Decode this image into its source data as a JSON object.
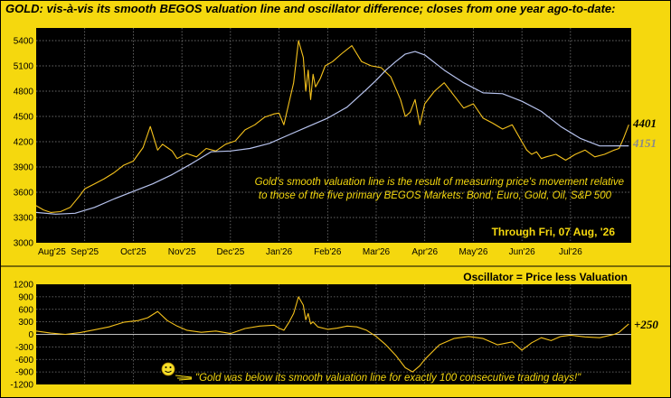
{
  "chart_data": [
    {
      "type": "line",
      "title": "GOLD:  vis-à-vis its smooth BEGOS valuation line and oscillator difference; closes from one year ago-to-date:",
      "x_ticks": [
        "Aug'25",
        "Sep'25",
        "Oct'25",
        "Nov'25",
        "Dec'25",
        "Jan'26",
        "Feb'26",
        "Mar'26",
        "Apr'26",
        "May'26",
        "Jun'26",
        "Jul'26"
      ],
      "y_ticks": [
        3000,
        3300,
        3600,
        3900,
        4200,
        4500,
        4800,
        5100,
        5400
      ],
      "ylim": [
        3000,
        5550
      ],
      "x_months_span": [
        0,
        12.25
      ],
      "grid": true,
      "series": [
        {
          "color": "#f5c21c",
          "x": [
            0,
            0.15,
            0.3,
            0.5,
            0.7,
            0.9,
            1.0,
            1.2,
            1.4,
            1.6,
            1.8,
            2.0,
            2.2,
            2.35,
            2.5,
            2.6,
            2.7,
            2.8,
            2.9,
            3.1,
            3.3,
            3.5,
            3.7,
            3.9,
            4.1,
            4.3,
            4.5,
            4.7,
            4.9,
            5.0,
            5.1,
            5.2,
            5.3,
            5.4,
            5.5,
            5.55,
            5.6,
            5.65,
            5.7,
            5.75,
            5.85,
            5.95,
            6.1,
            6.3,
            6.5,
            6.7,
            6.9,
            7.1,
            7.3,
            7.5,
            7.6,
            7.7,
            7.8,
            7.9,
            8.0,
            8.2,
            8.4,
            8.6,
            8.8,
            9.0,
            9.2,
            9.4,
            9.6,
            9.8,
            10.0,
            10.1,
            10.2,
            10.3,
            10.4,
            10.5,
            10.7,
            10.9,
            11.1,
            11.3,
            11.5,
            11.7,
            11.9,
            12.0,
            12.1,
            12.2
          ],
          "values": [
            3440,
            3390,
            3360,
            3370,
            3420,
            3560,
            3640,
            3700,
            3760,
            3830,
            3920,
            3970,
            4130,
            4380,
            4100,
            4170,
            4130,
            4090,
            4000,
            4060,
            4020,
            4120,
            4090,
            4170,
            4210,
            4340,
            4400,
            4490,
            4530,
            4540,
            4400,
            4650,
            4900,
            5400,
            5200,
            4800,
            5050,
            4700,
            5000,
            4850,
            4950,
            5100,
            5150,
            5250,
            5340,
            5150,
            5100,
            5080,
            4970,
            4700,
            4500,
            4550,
            4700,
            4400,
            4650,
            4800,
            4900,
            4750,
            4600,
            4650,
            4480,
            4420,
            4350,
            4400,
            4200,
            4100,
            4050,
            4080,
            4000,
            4020,
            4050,
            3980,
            4050,
            4100,
            4020,
            4050,
            4100,
            4120,
            4250,
            4401
          ]
        },
        {
          "color": "#b7c3ee",
          "x": [
            0,
            0.4,
            0.8,
            1.2,
            1.6,
            2.0,
            2.4,
            2.8,
            3.2,
            3.6,
            4.0,
            4.4,
            4.8,
            5.2,
            5.6,
            6.0,
            6.4,
            6.8,
            7.0,
            7.2,
            7.4,
            7.6,
            7.8,
            8.0,
            8.4,
            8.8,
            9.2,
            9.6,
            10.0,
            10.4,
            10.8,
            11.2,
            11.6,
            12.0,
            12.2
          ],
          "values": [
            3360,
            3340,
            3350,
            3420,
            3520,
            3610,
            3700,
            3810,
            3940,
            4080,
            4090,
            4120,
            4180,
            4280,
            4380,
            4480,
            4610,
            4820,
            4930,
            5050,
            5150,
            5240,
            5270,
            5230,
            5050,
            4900,
            4780,
            4770,
            4680,
            4560,
            4380,
            4240,
            4150,
            4151,
            4151
          ]
        }
      ],
      "end_labels": [
        {
          "text": "4401",
          "color": "#000000"
        },
        {
          "text": "4151",
          "color": "#8a8a8a"
        }
      ],
      "annotation_lines": [
        "Gold's smooth valuation line is the result of measuring price's movement relative",
        "to those of the five primary BEGOS Markets:  Bond, Euro, Gold, Oil, S&P 500"
      ],
      "date_label": "Through Fri, 07 Aug, '26"
    },
    {
      "type": "line",
      "title": "Oscillator = Price less Valuation",
      "y_ticks": [
        1200,
        900,
        600,
        300,
        0,
        -300,
        -600,
        -900,
        -1200
      ],
      "ylim": [
        -1200,
        1200
      ],
      "grid": true,
      "zero_line": true,
      "series": [
        {
          "color": "#f5c21c",
          "x": [
            0,
            0.3,
            0.6,
            0.9,
            1.2,
            1.5,
            1.8,
            2.1,
            2.3,
            2.5,
            2.7,
            2.9,
            3.1,
            3.4,
            3.7,
            4.0,
            4.3,
            4.6,
            4.9,
            5.0,
            5.1,
            5.2,
            5.3,
            5.4,
            5.5,
            5.55,
            5.6,
            5.65,
            5.7,
            5.8,
            6.0,
            6.2,
            6.4,
            6.6,
            6.8,
            7.0,
            7.2,
            7.4,
            7.6,
            7.75,
            7.9,
            8.0,
            8.3,
            8.6,
            8.9,
            9.2,
            9.5,
            9.8,
            10.0,
            10.2,
            10.4,
            10.6,
            10.8,
            11.0,
            11.3,
            11.6,
            11.9,
            12.0,
            12.1,
            12.2
          ],
          "values": [
            80,
            30,
            0,
            40,
            110,
            180,
            290,
            330,
            400,
            550,
            330,
            200,
            100,
            50,
            80,
            20,
            140,
            200,
            220,
            150,
            100,
            280,
            500,
            900,
            700,
            350,
            500,
            250,
            300,
            180,
            120,
            150,
            200,
            180,
            100,
            -50,
            -250,
            -500,
            -800,
            -900,
            -750,
            -600,
            -250,
            -100,
            -50,
            -100,
            -250,
            -180,
            -380,
            -200,
            -80,
            -150,
            -50,
            -20,
            -60,
            -80,
            0,
            50,
            150,
            250
          ]
        }
      ],
      "end_label": {
        "text": "+250",
        "color": "#000000"
      },
      "quote": "\"Gold was below its smooth valuation line for exactly 100 consecutive trading days!\""
    }
  ]
}
